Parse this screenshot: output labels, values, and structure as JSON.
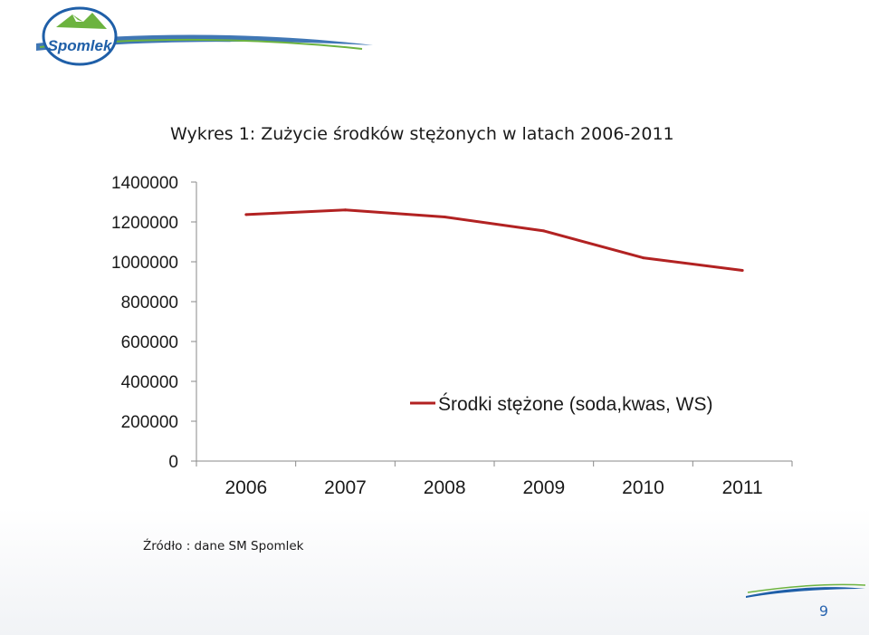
{
  "brand": {
    "logo_text": "Spomlek",
    "colors": {
      "blue": "#1f5fa8",
      "green": "#6cb33f",
      "white": "#ffffff"
    }
  },
  "slide": {
    "page_number": "9",
    "source_note": "Źródło : dane SM Spomlek"
  },
  "chart_data": {
    "type": "line",
    "title": "Wykres 1: Zużycie środków stężonych w latach 2006-2011",
    "x": [
      "2006",
      "2007",
      "2008",
      "2009",
      "2010",
      "2011"
    ],
    "series": [
      {
        "name": "Środki stężone (soda,kwas, WS)",
        "color": "#b22222",
        "values": [
          1237000,
          1260000,
          1225000,
          1155000,
          1020000,
          957000
        ]
      }
    ],
    "ylim": [
      0,
      1400000
    ],
    "yticks": [
      "0",
      "200000",
      "400000",
      "600000",
      "800000",
      "1000000",
      "1200000",
      "1400000"
    ],
    "grid": false,
    "legend_position": "center-right"
  }
}
